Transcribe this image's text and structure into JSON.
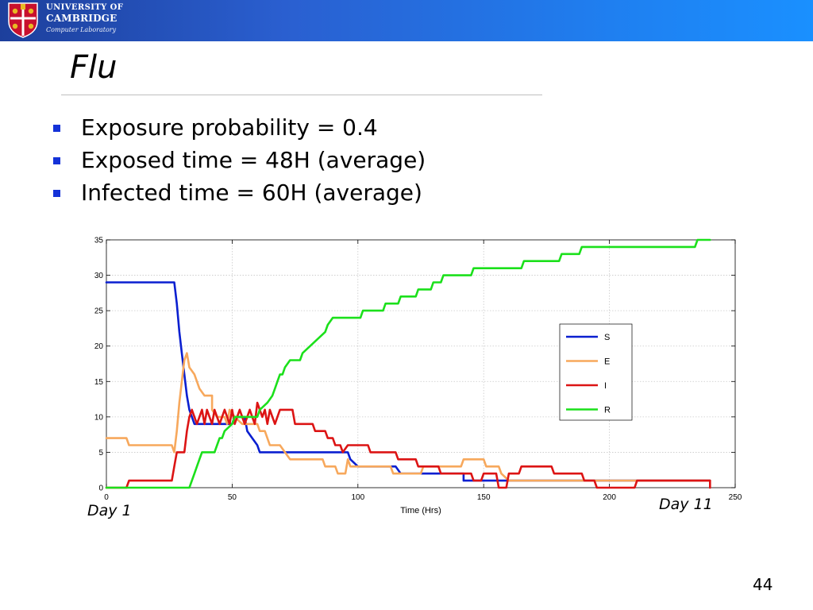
{
  "header": {
    "logo": {
      "line1": "UNIVERSITY OF",
      "line2": "CAMBRIDGE",
      "line3": "Computer Laboratory"
    },
    "colors": {
      "bar_start": "#1d3f9c",
      "bar_end": "#1a90ff"
    }
  },
  "slide": {
    "title": "Flu",
    "bullets": [
      "Exposure probability = 0.4",
      "Exposed time = 48H (average)",
      "Infected time = 60H (average)"
    ],
    "bullet_color": "#1432d8",
    "annotations": {
      "day_start": "Day 1",
      "day_end": "Day 11"
    },
    "page_number": "44"
  },
  "chart_data": {
    "type": "line",
    "title": "",
    "xlabel": "Time (Hrs)",
    "ylabel": "",
    "xlim": [
      0,
      250
    ],
    "ylim": [
      0,
      35
    ],
    "xticks": [
      0,
      50,
      100,
      150,
      200,
      250
    ],
    "yticks": [
      0,
      5,
      10,
      15,
      20,
      25,
      30,
      35
    ],
    "grid": true,
    "legend_position": "right",
    "series": [
      {
        "name": "S",
        "color": "#0a1fd0",
        "points": [
          [
            0,
            29
          ],
          [
            27,
            29
          ],
          [
            28,
            26
          ],
          [
            29,
            22
          ],
          [
            30,
            19
          ],
          [
            31,
            16
          ],
          [
            32,
            13
          ],
          [
            33,
            11
          ],
          [
            34,
            10
          ],
          [
            35,
            9
          ],
          [
            50,
            9
          ],
          [
            51,
            10
          ],
          [
            55,
            10
          ],
          [
            56,
            8
          ],
          [
            58,
            7
          ],
          [
            60,
            6
          ],
          [
            61,
            5
          ],
          [
            96,
            5
          ],
          [
            97,
            4
          ],
          [
            100,
            3
          ],
          [
            110,
            3
          ],
          [
            115,
            3
          ],
          [
            117,
            2
          ],
          [
            142,
            2
          ],
          [
            142,
            1
          ],
          [
            240,
            1
          ]
        ]
      },
      {
        "name": "E",
        "color": "#f7a85c",
        "points": [
          [
            0,
            7
          ],
          [
            8,
            7
          ],
          [
            9,
            6
          ],
          [
            26,
            6
          ],
          [
            27,
            5
          ],
          [
            28,
            8
          ],
          [
            29,
            12
          ],
          [
            30,
            15
          ],
          [
            31,
            18
          ],
          [
            32,
            19
          ],
          [
            33,
            17
          ],
          [
            35,
            16
          ],
          [
            37,
            14
          ],
          [
            39,
            13
          ],
          [
            42,
            13
          ],
          [
            42,
            11
          ],
          [
            44,
            10
          ],
          [
            47,
            10
          ],
          [
            48,
            9
          ],
          [
            49,
            11
          ],
          [
            51,
            10
          ],
          [
            54,
            9
          ],
          [
            60,
            9
          ],
          [
            61,
            8
          ],
          [
            63,
            8
          ],
          [
            65,
            6
          ],
          [
            69,
            6
          ],
          [
            71,
            5
          ],
          [
            73,
            4
          ],
          [
            86,
            4
          ],
          [
            87,
            3
          ],
          [
            91,
            3
          ],
          [
            92,
            2
          ],
          [
            95,
            2
          ],
          [
            96,
            4
          ],
          [
            97,
            3
          ],
          [
            113,
            3
          ],
          [
            114,
            2
          ],
          [
            125,
            2
          ],
          [
            126,
            3
          ],
          [
            141,
            3
          ],
          [
            142,
            4
          ],
          [
            150,
            4
          ],
          [
            151,
            3
          ],
          [
            156,
            3
          ],
          [
            157,
            2
          ],
          [
            160,
            1
          ],
          [
            240,
            1
          ]
        ]
      },
      {
        "name": "I",
        "color": "#dc1414",
        "points": [
          [
            0,
            0
          ],
          [
            8,
            0
          ],
          [
            9,
            1
          ],
          [
            26,
            1
          ],
          [
            27,
            3
          ],
          [
            28,
            5
          ],
          [
            31,
            5
          ],
          [
            32,
            8
          ],
          [
            33,
            10
          ],
          [
            34,
            11
          ],
          [
            35,
            10
          ],
          [
            36,
            9
          ],
          [
            37,
            10
          ],
          [
            38,
            11
          ],
          [
            39,
            9
          ],
          [
            40,
            11
          ],
          [
            41,
            10
          ],
          [
            42,
            9
          ],
          [
            43,
            11
          ],
          [
            44,
            10
          ],
          [
            45,
            9
          ],
          [
            46,
            10
          ],
          [
            47,
            11
          ],
          [
            48,
            10
          ],
          [
            49,
            9
          ],
          [
            50,
            11
          ],
          [
            51,
            9
          ],
          [
            52,
            10
          ],
          [
            53,
            11
          ],
          [
            54,
            10
          ],
          [
            55,
            9
          ],
          [
            56,
            10
          ],
          [
            57,
            11
          ],
          [
            58,
            10
          ],
          [
            59,
            9
          ],
          [
            60,
            12
          ],
          [
            61,
            11
          ],
          [
            62,
            10
          ],
          [
            63,
            11
          ],
          [
            64,
            9
          ],
          [
            65,
            11
          ],
          [
            66,
            10
          ],
          [
            67,
            9
          ],
          [
            68,
            10
          ],
          [
            69,
            11
          ],
          [
            74,
            11
          ],
          [
            75,
            9
          ],
          [
            82,
            9
          ],
          [
            83,
            8
          ],
          [
            87,
            8
          ],
          [
            88,
            7
          ],
          [
            90,
            7
          ],
          [
            91,
            6
          ],
          [
            93,
            6
          ],
          [
            94,
            5
          ],
          [
            96,
            6
          ],
          [
            104,
            6
          ],
          [
            105,
            5
          ],
          [
            115,
            5
          ],
          [
            116,
            4
          ],
          [
            123,
            4
          ],
          [
            124,
            3
          ],
          [
            132,
            3
          ],
          [
            133,
            2
          ],
          [
            145,
            2
          ],
          [
            146,
            1
          ],
          [
            149,
            1
          ],
          [
            150,
            2
          ],
          [
            155,
            2
          ],
          [
            156,
            0
          ],
          [
            159,
            0
          ],
          [
            160,
            2
          ],
          [
            164,
            2
          ],
          [
            165,
            3
          ],
          [
            177,
            3
          ],
          [
            178,
            2
          ],
          [
            189,
            2
          ],
          [
            190,
            1
          ],
          [
            194,
            1
          ],
          [
            195,
            0
          ],
          [
            210,
            0
          ],
          [
            211,
            1
          ],
          [
            240,
            1
          ],
          [
            240,
            0
          ]
        ]
      },
      {
        "name": "R",
        "color": "#1be01b",
        "points": [
          [
            0,
            0
          ],
          [
            33,
            0
          ],
          [
            34,
            1
          ],
          [
            35,
            2
          ],
          [
            36,
            3
          ],
          [
            37,
            4
          ],
          [
            38,
            5
          ],
          [
            43,
            5
          ],
          [
            44,
            6
          ],
          [
            45,
            7
          ],
          [
            46,
            7
          ],
          [
            47,
            8
          ],
          [
            50,
            9
          ],
          [
            51,
            10
          ],
          [
            60,
            10
          ],
          [
            61,
            11
          ],
          [
            64,
            12
          ],
          [
            66,
            13
          ],
          [
            67,
            14
          ],
          [
            68,
            15
          ],
          [
            69,
            16
          ],
          [
            70,
            16
          ],
          [
            71,
            17
          ],
          [
            73,
            18
          ],
          [
            77,
            18
          ],
          [
            78,
            19
          ],
          [
            81,
            20
          ],
          [
            84,
            21
          ],
          [
            87,
            22
          ],
          [
            88,
            23
          ],
          [
            90,
            24
          ],
          [
            101,
            24
          ],
          [
            102,
            25
          ],
          [
            110,
            25
          ],
          [
            111,
            26
          ],
          [
            116,
            26
          ],
          [
            117,
            27
          ],
          [
            123,
            27
          ],
          [
            124,
            28
          ],
          [
            129,
            28
          ],
          [
            130,
            29
          ],
          [
            133,
            29
          ],
          [
            134,
            30
          ],
          [
            145,
            30
          ],
          [
            146,
            31
          ],
          [
            165,
            31
          ],
          [
            166,
            32
          ],
          [
            180,
            32
          ],
          [
            181,
            33
          ],
          [
            188,
            33
          ],
          [
            189,
            34
          ],
          [
            234,
            34
          ],
          [
            235,
            35
          ],
          [
            240,
            35
          ]
        ]
      }
    ]
  }
}
